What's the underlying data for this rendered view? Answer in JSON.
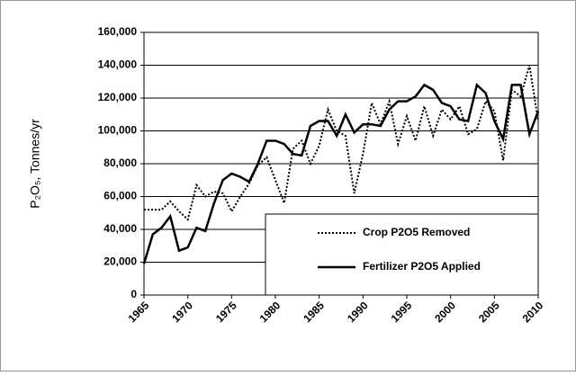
{
  "chart_data": {
    "type": "line",
    "y_label": "P₂O₅, Tonnes/yr",
    "x": [
      1965,
      1966,
      1967,
      1968,
      1969,
      1970,
      1971,
      1972,
      1973,
      1974,
      1975,
      1976,
      1977,
      1978,
      1979,
      1980,
      1981,
      1982,
      1983,
      1984,
      1985,
      1986,
      1987,
      1988,
      1989,
      1990,
      1991,
      1992,
      1993,
      1994,
      1995,
      1996,
      1997,
      1998,
      1999,
      2000,
      2001,
      2002,
      2003,
      2004,
      2005,
      2006,
      2007,
      2008,
      2009,
      2010
    ],
    "series": [
      {
        "name": "Crop P2O5 Removed",
        "color": "#000000",
        "linestyle": "dotted",
        "values": [
          52000,
          52000,
          52000,
          57000,
          51000,
          46000,
          67000,
          60000,
          63000,
          62000,
          51000,
          60000,
          68000,
          79000,
          84000,
          70000,
          56000,
          89000,
          94000,
          80000,
          91000,
          113000,
          100000,
          97000,
          62000,
          86000,
          117000,
          104000,
          118000,
          92000,
          109000,
          94000,
          115000,
          97000,
          113000,
          107000,
          115000,
          98000,
          101000,
          118000,
          112000,
          82000,
          125000,
          121000,
          140000,
          106000
        ]
      },
      {
        "name": "Fertilizer P2O5 Applied",
        "color": "#000000",
        "linestyle": "solid",
        "values": [
          19000,
          37000,
          41000,
          48000,
          27000,
          29000,
          41000,
          39000,
          56000,
          70000,
          74000,
          72000,
          69000,
          80000,
          94000,
          94000,
          92000,
          86000,
          85000,
          103000,
          106000,
          106000,
          97000,
          110000,
          99000,
          104000,
          104000,
          103000,
          113000,
          118000,
          118000,
          121000,
          128000,
          125000,
          117000,
          115000,
          107000,
          106000,
          128000,
          123000,
          106000,
          95000,
          128000,
          128000,
          98000,
          112000
        ]
      }
    ],
    "xlim": [
      1965,
      2010
    ],
    "xticks": [
      1965,
      1970,
      1975,
      1980,
      1985,
      1990,
      1995,
      2000,
      2005,
      2010
    ],
    "ylim": [
      0,
      160000
    ],
    "yticks": [
      0,
      {
        "value": 20000,
        "label": "20,000"
      },
      {
        "value": 40000,
        "label": "40,000"
      },
      {
        "value": 60000,
        "label": "60,000"
      },
      {
        "value": 80000,
        "label": "80,000"
      },
      {
        "value": 100000,
        "label": "100,000"
      },
      {
        "value": 120000,
        "label": "120,000"
      },
      {
        "value": 140000,
        "label": "140,000"
      },
      {
        "value": 160000,
        "label": "160,000"
      }
    ],
    "grid": true,
    "legend": "lower right"
  }
}
